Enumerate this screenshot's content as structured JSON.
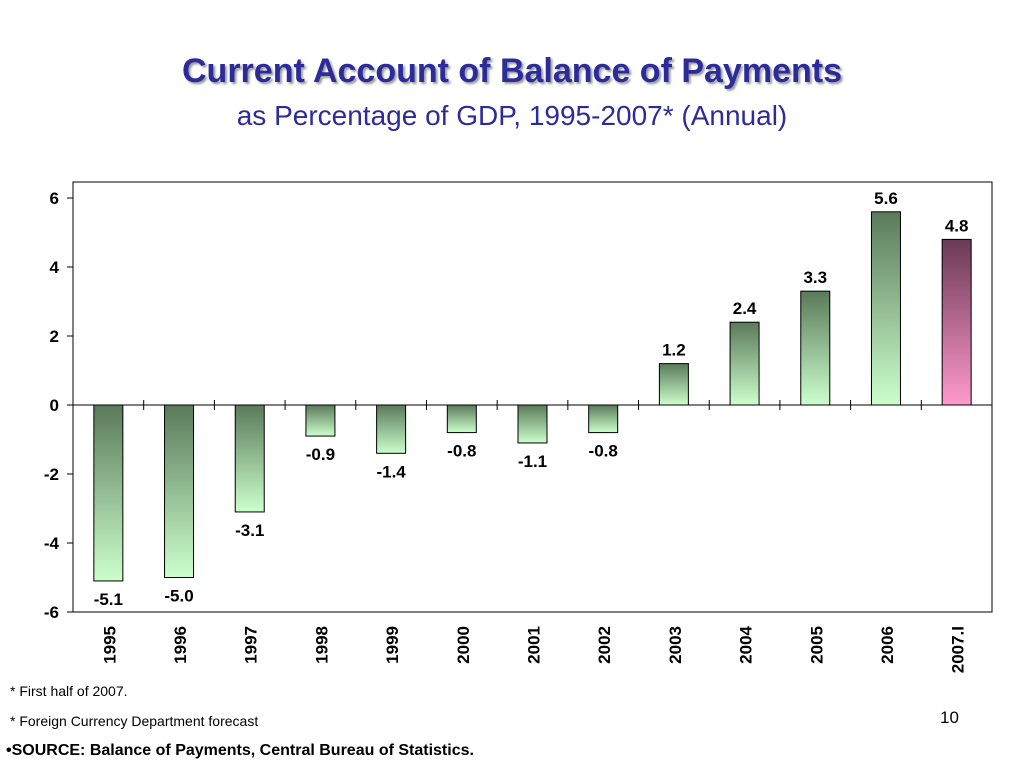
{
  "chart_data": {
    "type": "bar",
    "title": "Current Account of Balance of Payments",
    "subtitle": "as Percentage of GDP, 1995-2007* (Annual)",
    "xlabel": "",
    "ylabel": "",
    "categories": [
      "1995",
      "1996",
      "1997",
      "1998",
      "1999",
      "2000",
      "2001",
      "2002",
      "2003",
      "2004",
      "2005",
      "2006",
      "2007.I"
    ],
    "values": [
      -5.1,
      -5.0,
      -3.1,
      -0.9,
      -1.4,
      -0.8,
      -1.1,
      -0.8,
      1.2,
      2.4,
      3.3,
      5.6,
      4.8
    ],
    "data_labels": [
      "-5.1",
      "-5.0",
      "-3.1",
      "-0.9",
      "-1.4",
      "-0.8",
      "-1.1",
      "-0.8",
      "1.2",
      "2.4",
      "3.3",
      "5.6",
      "4.8"
    ],
    "ylim": [
      -6,
      6
    ],
    "yticks": [
      -6,
      -4,
      -2,
      0,
      2,
      4,
      6
    ],
    "grid": false,
    "colors": {
      "bar_top": "#5a7a5a",
      "bar_bottom": "#ccffcc",
      "highlight_top": "#6b3a55",
      "highlight_bottom": "#ff99cc",
      "title": "#2b2b9a"
    },
    "highlight_index": 12
  },
  "footnotes": {
    "note1": "* First half of 2007.",
    "note2": "* Foreign Currency Department forecast",
    "source": "•SOURCE: Balance of Payments, Central Bureau of Statistics.",
    "page_number": "10"
  }
}
